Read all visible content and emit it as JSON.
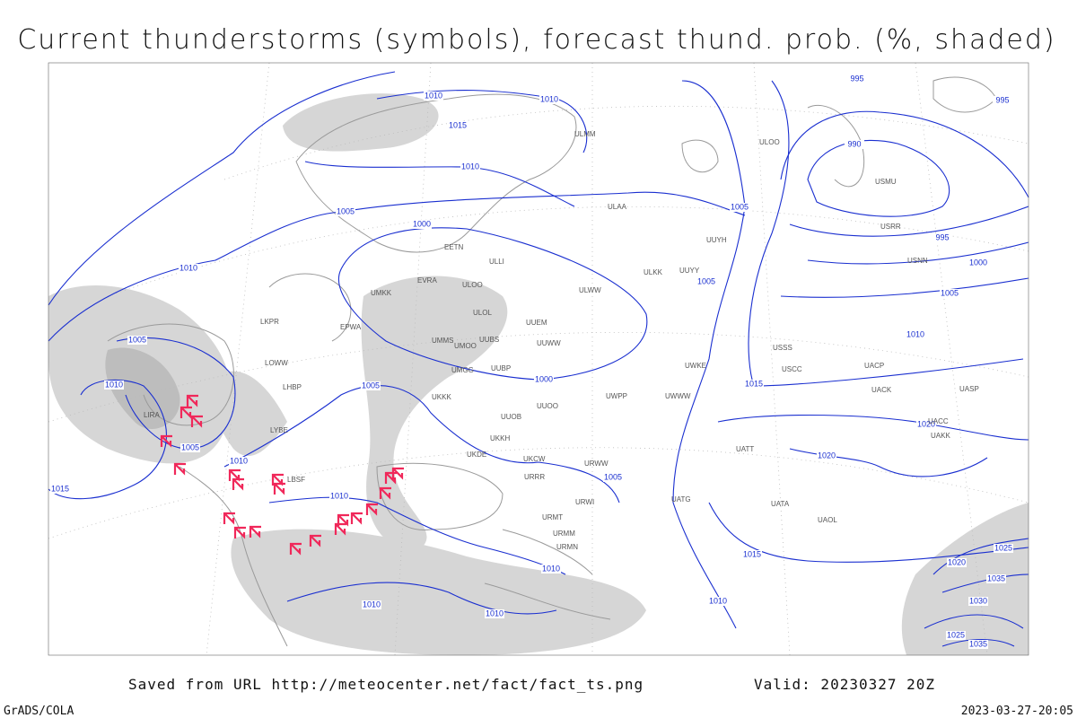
{
  "header": {
    "title": "Current thunderstorms (symbols), forecast thund. prob. (%, shaded)"
  },
  "isobar_labels": [
    1010,
    1010,
    1015,
    1010,
    1005,
    1000,
    1010,
    1005,
    1005,
    995,
    995,
    990,
    995,
    1000,
    1005,
    1010,
    1005,
    1010,
    1005,
    1000,
    1015,
    1005,
    1010,
    1015,
    1010,
    1005,
    1020,
    1020,
    1015,
    1010,
    1010,
    1010,
    1010,
    1025,
    1020,
    1030,
    1035,
    1025,
    1035
  ],
  "stations": [
    "ULMM",
    "ULOO",
    "ULAA",
    "UUYH",
    "ULKK",
    "UUYY",
    "ULWW",
    "EVRA",
    "ULOO",
    "UMKK",
    "ULOL",
    "UUEM",
    "UMMS",
    "UMOO",
    "UUBS",
    "UUWW",
    "UMGG",
    "UUBP",
    "UKKK",
    "UUOO",
    "UUOB",
    "UKKH",
    "UKDE",
    "UKCW",
    "URRR",
    "URWI",
    "URMT",
    "URMM",
    "URMN",
    "UATG",
    "UATA",
    "UAOL",
    "UACC",
    "UAKK",
    "UASP",
    "UACK",
    "EPWA",
    "LKPR",
    "LOWW",
    "LHBP",
    "LIRA",
    "LYBE",
    "LBSF",
    "ULLI",
    "EETN",
    "USSS",
    "USCC",
    "USRR",
    "USNN",
    "USMU",
    "UWKE",
    "UWWW",
    "UWPP",
    "URWW",
    "UATT",
    "UACP"
  ],
  "footer": {
    "source": "Saved from URL http://meteocenter.net/fact/fact_ts.png",
    "valid": "Valid: 20230327 20Z",
    "credit": "GrADS/COLA",
    "timestamp": "2023-03-27-20:05"
  }
}
